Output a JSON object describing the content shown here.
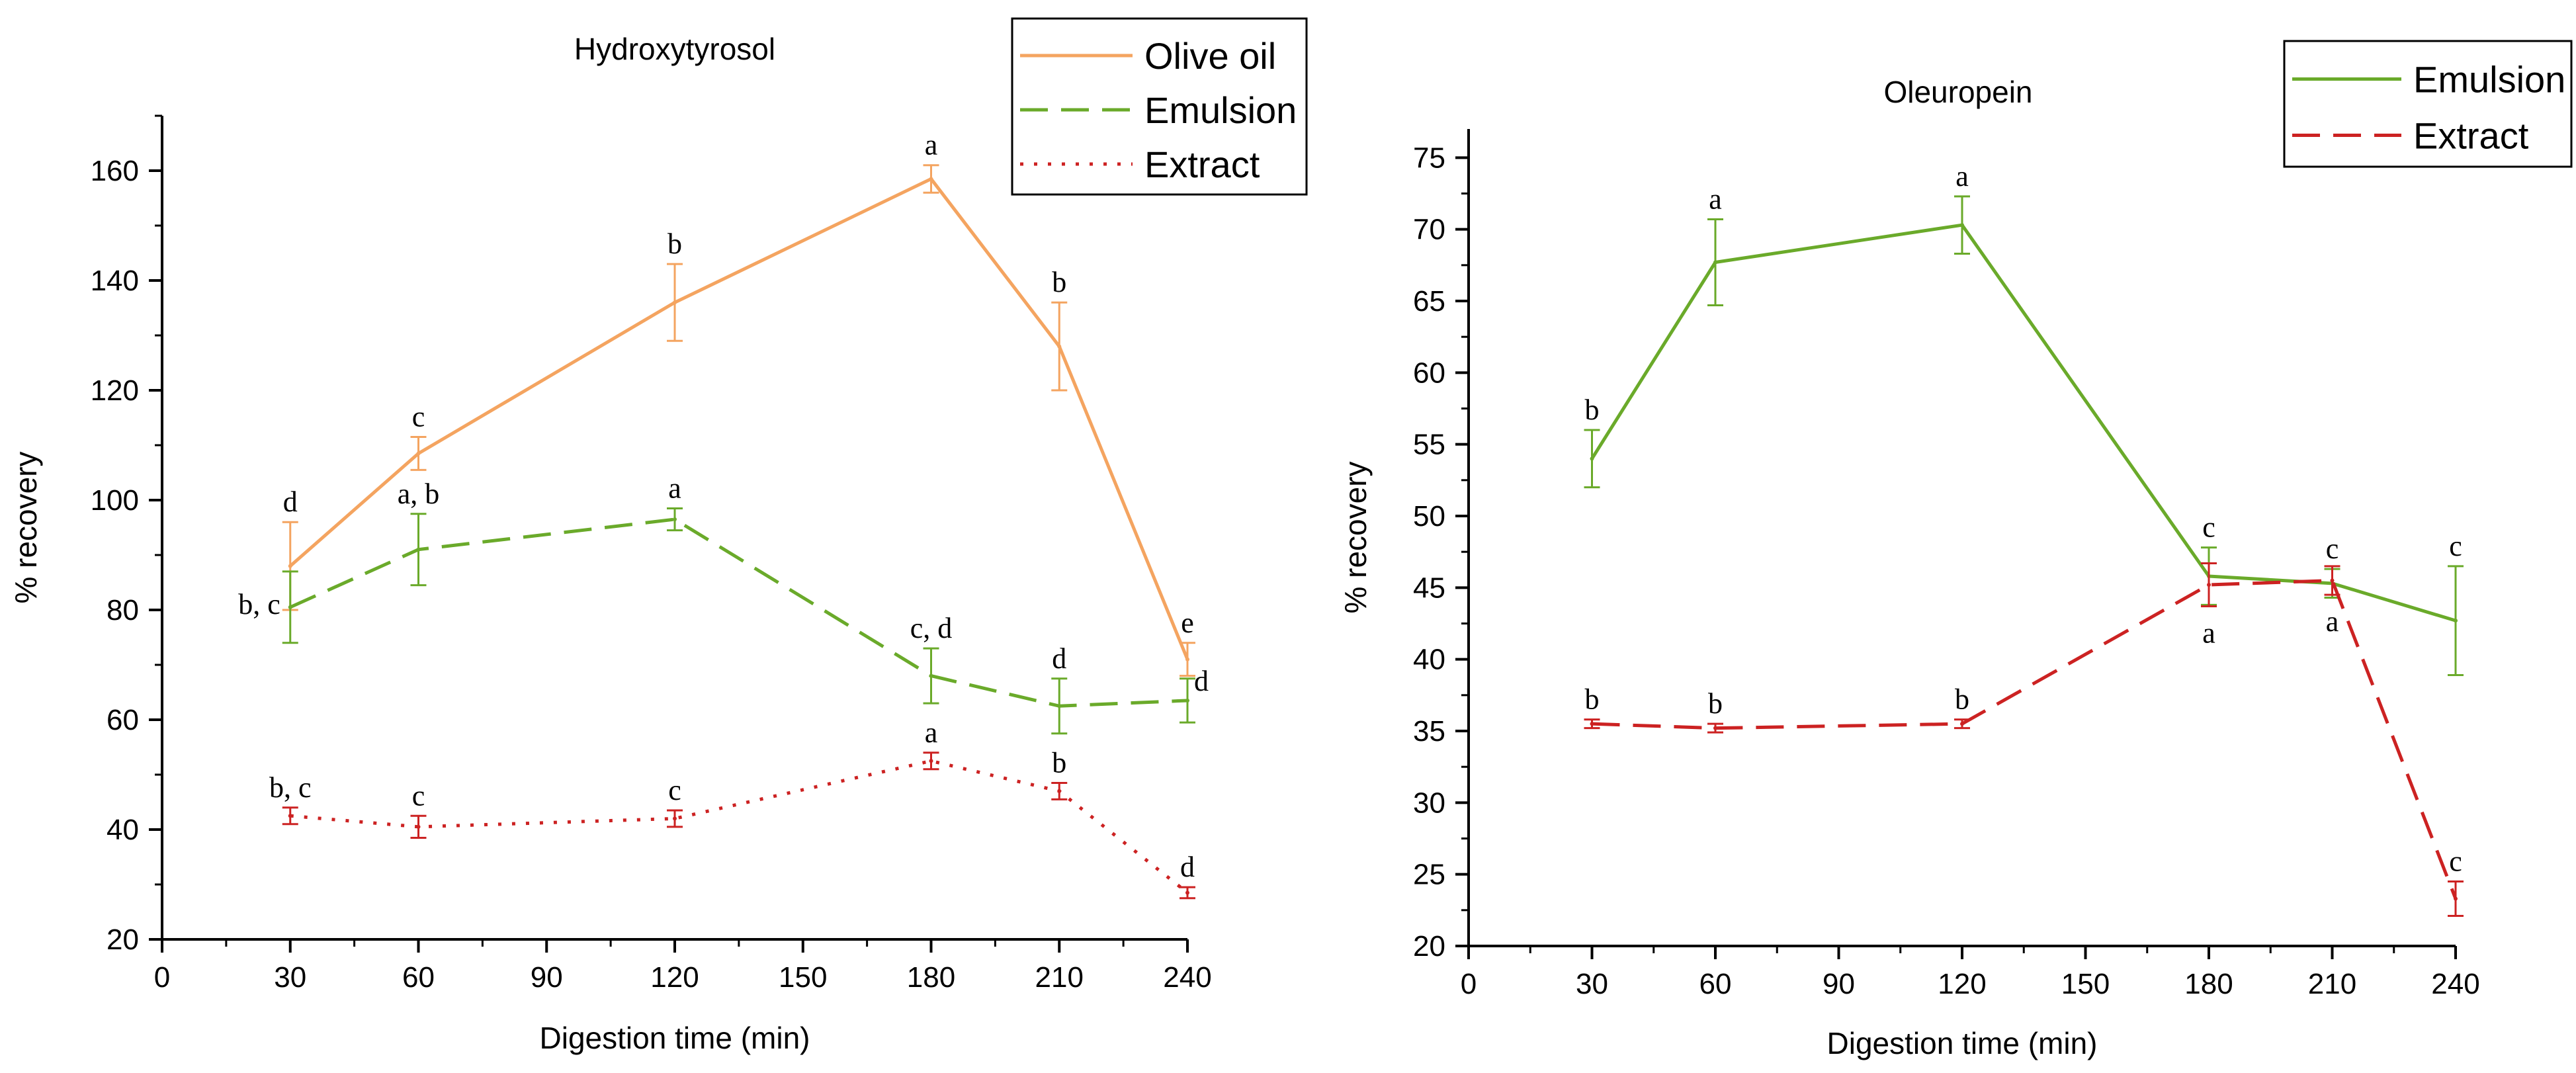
{
  "chart_data": [
    {
      "type": "line",
      "title": "Hydroxytyrosol",
      "xlabel": "Digestion time (min)",
      "ylabel": "% recovery",
      "xlim": [
        0,
        240
      ],
      "ylim": [
        20,
        170
      ],
      "xticks": [
        0,
        30,
        60,
        90,
        120,
        150,
        180,
        210,
        240
      ],
      "yticks": [
        20,
        40,
        60,
        80,
        100,
        120,
        140,
        160
      ],
      "grid": false,
      "legend_position": "top-right",
      "series": [
        {
          "name": "Olive oil",
          "color": "#f4a460",
          "style": "solid",
          "x": [
            30,
            60,
            120,
            180,
            210,
            240
          ],
          "y": [
            88,
            108.5,
            136,
            158.5,
            128,
            71
          ],
          "err": [
            8,
            3,
            7,
            2.5,
            8,
            3
          ],
          "labels": [
            "d",
            "c",
            "b",
            "a",
            "b",
            "e"
          ]
        },
        {
          "name": "Emulsion",
          "color": "#6aaa2a",
          "style": "dashed",
          "x": [
            30,
            60,
            120,
            180,
            210,
            240
          ],
          "y": [
            80.5,
            91,
            96.5,
            68,
            62.5,
            63.5
          ],
          "err": [
            6.5,
            6.5,
            2,
            5,
            5,
            4
          ],
          "labels": [
            "b, c",
            "a, b",
            "a",
            "c, d",
            "d",
            "d"
          ]
        },
        {
          "name": "Extract",
          "color": "#cc2222",
          "style": "dotted",
          "x": [
            30,
            60,
            120,
            180,
            210,
            240
          ],
          "y": [
            42.5,
            40.5,
            42,
            52.5,
            47,
            28.5
          ],
          "err": [
            1.5,
            2,
            1.5,
            1.5,
            1.5,
            1
          ],
          "labels": [
            "b, c",
            "c",
            "c",
            "a",
            "b",
            "d"
          ]
        }
      ]
    },
    {
      "type": "line",
      "title": "Oleuropein",
      "xlabel": "Digestion time (min)",
      "ylabel": "% recovery",
      "xlim": [
        0,
        240
      ],
      "ylim": [
        20,
        77
      ],
      "xticks": [
        0,
        30,
        60,
        90,
        120,
        150,
        180,
        210,
        240
      ],
      "yticks": [
        20,
        25,
        30,
        35,
        40,
        45,
        50,
        55,
        60,
        65,
        70,
        75
      ],
      "grid": false,
      "legend_position": "top-right",
      "series": [
        {
          "name": "Emulsion",
          "color": "#6aaa2a",
          "style": "solid",
          "x": [
            30,
            60,
            120,
            180,
            210,
            240
          ],
          "y": [
            54,
            67.7,
            70.3,
            45.8,
            45.3,
            42.7
          ],
          "err": [
            2,
            3,
            2,
            2,
            1,
            3.8
          ],
          "labels": [
            "b",
            "a",
            "a",
            "c",
            "c",
            "c"
          ]
        },
        {
          "name": "Extract",
          "color": "#cc2222",
          "style": "dashed",
          "x": [
            30,
            60,
            120,
            180,
            210,
            240
          ],
          "y": [
            35.5,
            35.2,
            35.5,
            45.2,
            45.5,
            23.3
          ],
          "err": [
            0.3,
            0.3,
            0.3,
            1.5,
            1,
            1.2
          ],
          "labels": [
            "b",
            "b",
            "b",
            "a",
            "a",
            "c"
          ]
        }
      ]
    }
  ]
}
